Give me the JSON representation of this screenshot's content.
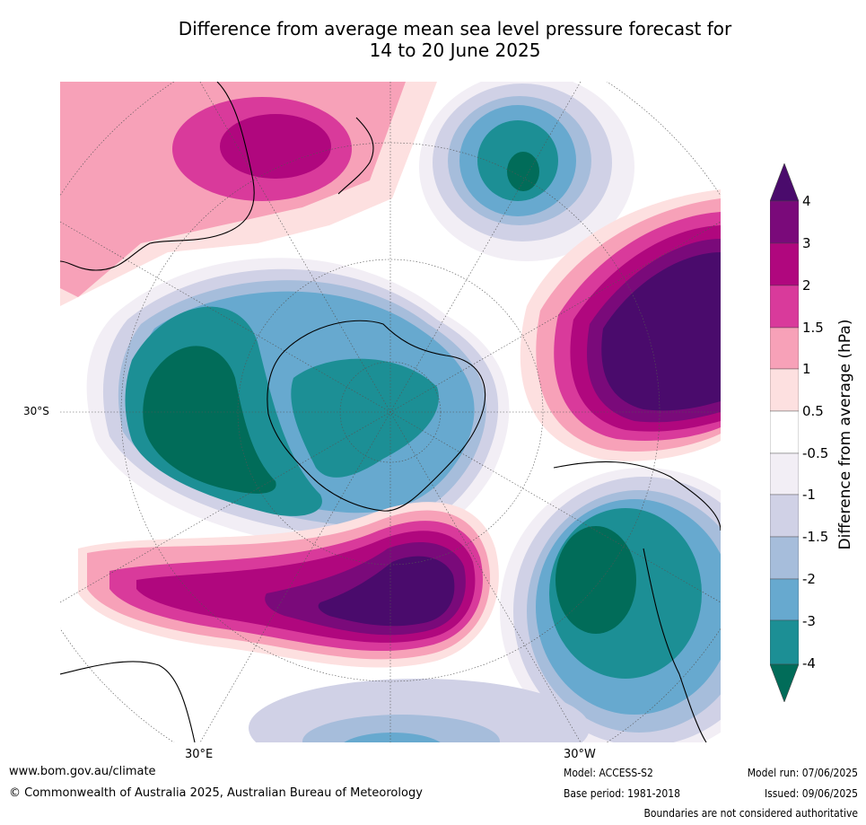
{
  "title_line1": "Difference from average mean sea level pressure forecast for",
  "title_line2": "14 to 20 June 2025",
  "lat_label": "30°S",
  "lon_labels": [
    "30°E",
    "30°W"
  ],
  "colorbar": {
    "label": "Difference from average (hPa)",
    "ticks": [
      "4",
      "3",
      "2",
      "1.5",
      "1",
      "0.5",
      "-0.5",
      "-1",
      "-1.5",
      "-2",
      "-3",
      "-4"
    ],
    "colors": {
      "gt4": "#4a0b6c",
      "3_4": "#7a0a7a",
      "2_3": "#b0077e",
      "1.5_2": "#d93a9b",
      "1_1.5": "#f7a1b8",
      "0.5_1": "#fde0e0",
      "neutral": "#ffffff",
      "m1_m0.5": "#f2eef5",
      "m1.5_m1": "#d0d1e6",
      "m2_m1.5": "#a6bddb",
      "m3_m2": "#67a9cf",
      "m4_m3": "#1c8f95",
      "lt_m4": "#016c59"
    }
  },
  "footer": {
    "website": "www.bom.gov.au/climate",
    "copyright": "© Commonwealth of Australia 2025, Australian Bureau of Meteorology",
    "model": "Model: ACCESS-S2",
    "base_period": "Base period: 1981-2018",
    "model_run": "Model run: 07/06/2025",
    "issued": "Issued: 09/06/2025",
    "disclaimer": "Boundaries are not considered authoritative"
  }
}
